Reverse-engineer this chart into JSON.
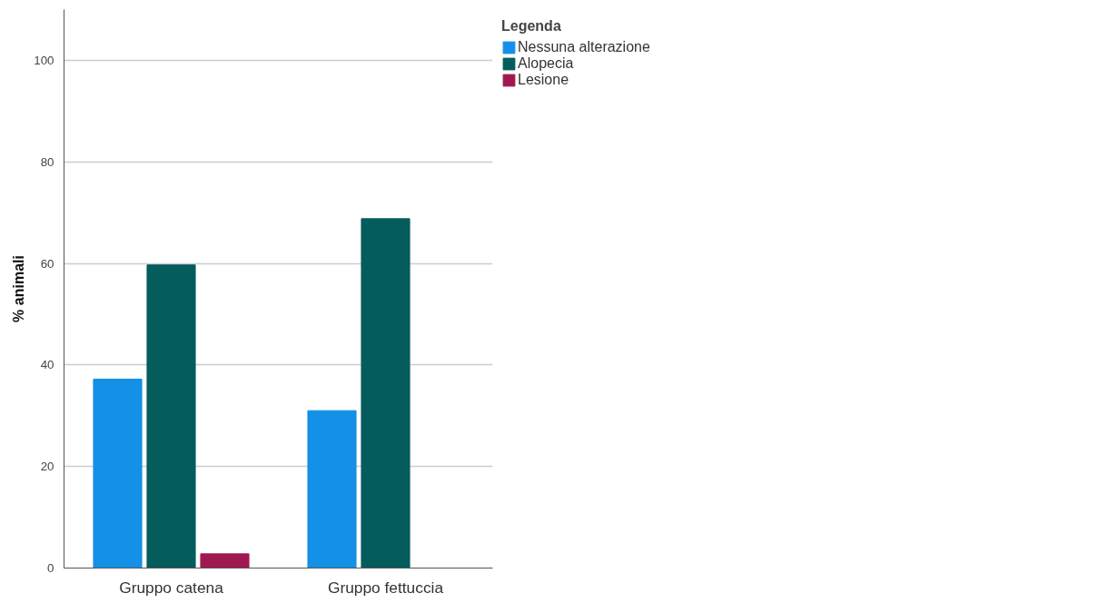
{
  "chart_data": {
    "type": "bar",
    "ylabel": "% animali",
    "legend_title": "Legenda",
    "categories": [
      "Gruppo catena",
      "Gruppo fettuccia"
    ],
    "series": [
      {
        "name": "Nessuna alterazione",
        "color": "#1490e6",
        "values": [
          37.2,
          31.0
        ]
      },
      {
        "name": "Alopecia",
        "color": "#045c5c",
        "values": [
          59.7,
          68.8
        ]
      },
      {
        "name": "Lesione",
        "color": "#a01850",
        "values": [
          2.8,
          null
        ]
      }
    ],
    "ylim": [
      0,
      110
    ],
    "yticks": [
      0,
      20,
      40,
      60,
      80,
      100
    ],
    "grid": "y",
    "legend": "top right"
  }
}
